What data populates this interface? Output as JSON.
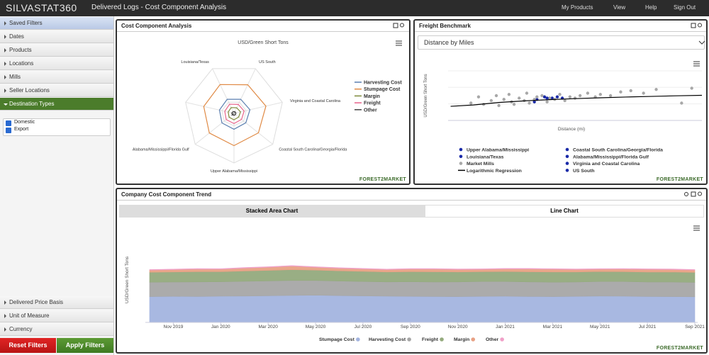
{
  "header": {
    "logo": "SILVASTAT360",
    "title": "Delivered Logs - Cost Component Analysis",
    "menu": [
      "My Products",
      "View",
      "Help",
      "Sign Out"
    ]
  },
  "sidebar": {
    "filters": [
      "Saved Filters",
      "Dates",
      "Products",
      "Locations",
      "Mills",
      "Seller Locations",
      "Destination Types"
    ],
    "options": [
      "Domestic",
      "Export"
    ],
    "more_filters": [
      "Delivered Price Basis",
      "Unit of Measure",
      "Currency"
    ],
    "buttons": [
      "Reset Filters",
      "Apply Filters"
    ]
  },
  "panels": [
    {
      "title": "Cost Component Analysis",
      "logo": "FOREST2MARKET"
    },
    {
      "title": "Freight Benchmark",
      "dropdown": "Distance by Miles",
      "logo": "FOREST2MARKET"
    },
    {
      "title": "Company Cost Component Trend",
      "tabs": [
        "Stacked Area Chart",
        "Line Chart"
      ],
      "logo": "FOREST2MARKET"
    }
  ],
  "chart_data": [
    {
      "type": "radar",
      "title": "USD/Green Short Tons",
      "categories": [
        "US South",
        "Virginia and Coastal Carolina",
        "Coastal South Carolina/Georgia/Florida",
        "Upper Alabama/Mississippi",
        "Alabama/Mississippi/Florida Gulf",
        null,
        "Louisiana/Texas"
      ],
      "ylim": [
        0,
        200
      ],
      "yticks": [
        50
      ],
      "series": [
        {
          "name": "Harvesting Cost",
          "color": "#5b7fb0",
          "values": [
            63,
            66,
            61,
            64,
            62,
            60,
            63
          ]
        },
        {
          "name": "Stumpage Cost",
          "color": "#e08a45",
          "values": [
            128,
            132,
            126,
            130,
            127,
            125,
            129
          ]
        },
        {
          "name": "Margin",
          "color": "#7d8a3a",
          "values": [
            25,
            27,
            24,
            26,
            25,
            24,
            26
          ]
        },
        {
          "name": "Freight",
          "color": "#e8628a",
          "values": [
            40,
            42,
            39,
            41,
            40,
            38,
            41
          ]
        },
        {
          "name": "Other",
          "color": "#444444",
          "values": [
            8,
            8,
            8,
            8,
            8,
            8,
            8
          ]
        }
      ]
    },
    {
      "type": "scatter",
      "xlabel": "Distance (mi)",
      "ylabel": "USD/Green Short Tons",
      "xlim": [
        0,
        500
      ],
      "ylim": [
        0,
        40
      ],
      "grid": true,
      "series": [
        {
          "name": "Upper Alabama/Mississippi",
          "color": "#1a2aa8",
          "x": [
            175,
            190
          ],
          "values": [
            17,
            19
          ]
        },
        {
          "name": "Coastal South Carolina/Georgia/Florida",
          "color": "#1a2aa8",
          "x": [
            205
          ],
          "values": [
            18
          ]
        },
        {
          "name": "Louisiana/Texas",
          "color": "#1a2aa8",
          "x": [
            170
          ],
          "values": [
            15
          ]
        },
        {
          "name": "Alabama/Mississippi/Florida Gulf",
          "color": "#1a2aa8",
          "x": [
            215
          ],
          "values": [
            19
          ]
        },
        {
          "name": "Market Mills",
          "color": "#a8a8a8",
          "x": [
            45,
            60,
            70,
            85,
            95,
            100,
            110,
            120,
            125,
            130,
            140,
            150,
            155,
            160,
            170,
            175,
            185,
            195,
            200,
            210,
            220,
            230,
            240,
            250,
            260,
            275,
            290,
            300,
            320,
            340,
            360,
            385,
            410,
            460,
            480
          ],
          "values": [
            14,
            19,
            13,
            16,
            20,
            12,
            17,
            21,
            15,
            13,
            18,
            16,
            22,
            14,
            17,
            19,
            20,
            15,
            18,
            17,
            21,
            16,
            19,
            18,
            20,
            22,
            19,
            21,
            20,
            23,
            24,
            22,
            25,
            14,
            26
          ]
        },
        {
          "name": "Virginia and Coastal Carolina",
          "color": "#1a2aa8",
          "x": [
            225
          ],
          "values": [
            18
          ]
        },
        {
          "name": "Logarithmic Regression",
          "color": "#000000",
          "type": "line",
          "x": [
            5,
            50,
            100,
            150,
            200,
            250,
            300,
            350,
            400,
            450,
            500
          ],
          "values": [
            11.4,
            12.5,
            14.5,
            15.8,
            16.8,
            17.6,
            18.3,
            18.9,
            19.4,
            19.9,
            20.3
          ]
        },
        {
          "name": "US South",
          "color": "#1a2aa8",
          "x": [
            195
          ],
          "values": [
            18
          ]
        }
      ]
    },
    {
      "type": "stacked_area",
      "ylabel": "USD/Green Short Tons",
      "ylim": [
        0,
        60
      ],
      "categories": [
        null,
        "Nov 2019",
        null,
        "Jan 2020",
        null,
        "Mar 2020",
        null,
        "May 2020",
        null,
        "Jul 2020",
        null,
        "Sep 2020",
        null,
        "Nov 2020",
        null,
        "Jan 2021",
        null,
        "Mar 2021",
        null,
        "May 2021",
        null,
        "Jul 2021",
        null,
        "Sep 2021"
      ],
      "series": [
        {
          "name": "Stumpage Cost",
          "color": "#a3b4df",
          "values": [
            18.2,
            18.4,
            18.3,
            18.5,
            18.6,
            18.8,
            19.0,
            19.2,
            18.9,
            18.7,
            18.5,
            18.4,
            18.3,
            18.2,
            18.4,
            18.5,
            18.3,
            18.2,
            18.4,
            18.6,
            18.5,
            18.3,
            18.2,
            18.1
          ]
        },
        {
          "name": "Harvesting Cost",
          "color": "#a6a6a6",
          "values": [
            10.2,
            10.1,
            10.3,
            10.2,
            10.4,
            10.5,
            10.6,
            10.4,
            10.3,
            10.2,
            10.1,
            10.3,
            10.2,
            10.4,
            10.5,
            10.4,
            10.3,
            10.2,
            10.1,
            10.3,
            10.4,
            10.2,
            10.3,
            10.2
          ]
        },
        {
          "name": "Freight",
          "color": "#94aa7d",
          "values": [
            7.0,
            7.1,
            7.2,
            7.1,
            7.3,
            7.4,
            7.6,
            7.3,
            7.2,
            7.1,
            7.0,
            7.1,
            7.2,
            7.0,
            6.9,
            7.0,
            7.1,
            7.2,
            7.1,
            7.0,
            6.9,
            7.0,
            7.1,
            7.0
          ]
        },
        {
          "name": "Margin",
          "color": "#e8a184",
          "values": [
            1.5,
            1.6,
            1.8,
            1.7,
            2.0,
            2.2,
            2.5,
            2.0,
            1.8,
            1.7,
            1.6,
            1.8,
            1.9,
            1.7,
            1.6,
            1.8,
            2.0,
            1.9,
            1.7,
            1.6,
            1.8,
            1.9,
            1.7,
            1.6
          ]
        },
        {
          "name": "Other",
          "color": "#f0a0c8",
          "values": [
            0.4,
            0.4,
            0.4,
            0.4,
            0.4,
            0.4,
            0.4,
            0.4,
            0.4,
            0.4,
            0.4,
            0.4,
            0.4,
            0.4,
            0.4,
            0.4,
            0.4,
            0.4,
            0.4,
            0.4,
            0.4,
            0.4,
            0.4,
            0.4
          ]
        }
      ]
    }
  ]
}
